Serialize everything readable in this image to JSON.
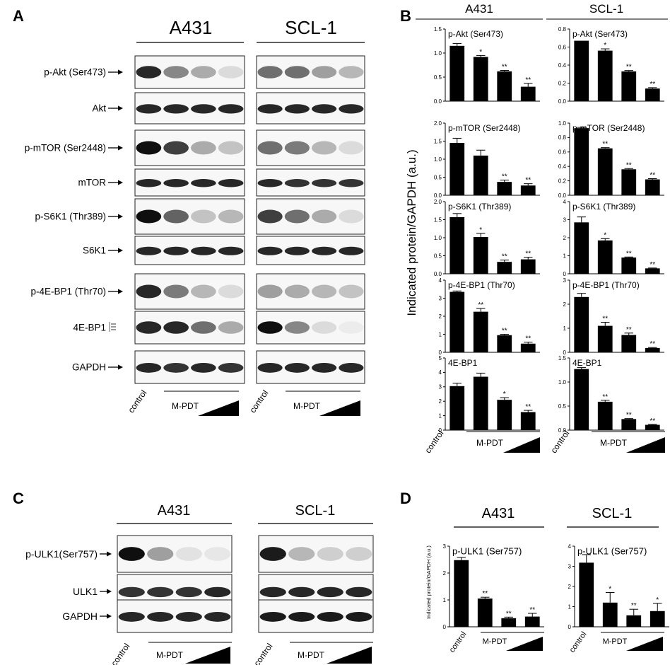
{
  "panel_letters": {
    "a": "A",
    "b": "B",
    "c": "C",
    "d": "D"
  },
  "cell_lines": {
    "a431": "A431",
    "scl1": "SCL-1"
  },
  "blot_labels": {
    "p_akt": "p-Akt (Ser473)",
    "akt": "Akt",
    "p_mtor": "p-mTOR (Ser2448)",
    "mtor": "mTOR",
    "p_s6k1": "p-S6K1 (Thr389)",
    "s6k1": "S6K1",
    "p_4ebp1": "p-4E-BP1 (Thr70)",
    "four_ebp1": "4E-BP1",
    "gapdh": "GAPDH",
    "p_ulk1": "p-ULK1(Ser757)",
    "ulk1": "ULK1"
  },
  "treatment_labels": {
    "control": "control",
    "mpdt": "M-PDT"
  },
  "y_axis_title_b": "Indicated protein/GAPDH (a.u.)",
  "y_axis_title_d": "Indicated protein/GAPDH (a.u.)",
  "band_intensity": {
    "a431": {
      "p_akt": [
        0.9,
        0.5,
        0.35,
        0.15
      ],
      "akt": [
        0.9,
        0.9,
        0.9,
        0.9
      ],
      "p_mtor": [
        1.0,
        0.8,
        0.35,
        0.25
      ],
      "mtor": [
        0.9,
        0.9,
        0.9,
        0.9
      ],
      "p_s6k1": [
        1.0,
        0.65,
        0.25,
        0.3
      ],
      "s6k1": [
        0.9,
        0.9,
        0.9,
        0.9
      ],
      "p_4ebp1": [
        0.9,
        0.55,
        0.3,
        0.15
      ],
      "four_ebp1": [
        0.9,
        0.9,
        0.6,
        0.35
      ],
      "gapdh": [
        0.9,
        0.85,
        0.9,
        0.85
      ],
      "p_ulk1": [
        1.0,
        0.4,
        0.12,
        0.1
      ],
      "ulk1": [
        0.85,
        0.85,
        0.85,
        0.9
      ],
      "gapdh_c": [
        0.9,
        0.9,
        0.9,
        0.9
      ]
    },
    "scl1": {
      "p_akt": [
        0.6,
        0.6,
        0.4,
        0.3
      ],
      "akt": [
        0.9,
        0.9,
        0.9,
        0.9
      ],
      "p_mtor": [
        0.6,
        0.55,
        0.3,
        0.15
      ],
      "mtor": [
        0.9,
        0.85,
        0.85,
        0.85
      ],
      "p_s6k1": [
        0.8,
        0.6,
        0.35,
        0.15
      ],
      "s6k1": [
        0.9,
        0.9,
        0.9,
        0.9
      ],
      "p_4ebp1": [
        0.4,
        0.35,
        0.3,
        0.25
      ],
      "four_ebp1": [
        1.0,
        0.5,
        0.15,
        0.08
      ],
      "gapdh": [
        0.9,
        0.9,
        0.9,
        0.9
      ],
      "p_ulk1": [
        0.95,
        0.3,
        0.2,
        0.2
      ],
      "ulk1": [
        0.9,
        0.9,
        0.9,
        0.9
      ],
      "gapdh_c": [
        0.95,
        0.95,
        0.95,
        0.95
      ]
    }
  },
  "chart_data": [
    {
      "type": "bar",
      "panel": "B",
      "cell_line": "A431",
      "title": "p-Akt (Ser473)",
      "categories": [
        "control",
        "M-PDT",
        "M-PDT",
        "M-PDT"
      ],
      "values": [
        1.15,
        0.92,
        0.62,
        0.3
      ],
      "errors": [
        0.05,
        0.03,
        0.02,
        0.07
      ],
      "significance": [
        "",
        "*",
        "**",
        "**"
      ],
      "ylim": [
        0,
        1.5
      ],
      "yticks": [
        0,
        0.5,
        1.0,
        1.5
      ],
      "ytick_labels": [
        "0.0",
        "0.5",
        "1.0",
        "1.5"
      ]
    },
    {
      "type": "bar",
      "panel": "B",
      "cell_line": "A431",
      "title": "p-mTOR (Ser2448)",
      "categories": [
        "control",
        "M-PDT",
        "M-PDT",
        "M-PDT"
      ],
      "values": [
        1.45,
        1.1,
        0.37,
        0.27
      ],
      "errors": [
        0.13,
        0.15,
        0.05,
        0.05
      ],
      "significance": [
        "",
        "",
        "**",
        "**"
      ],
      "ylim": [
        0,
        2.0
      ],
      "yticks": [
        0,
        0.5,
        1.0,
        1.5,
        2.0
      ],
      "ytick_labels": [
        "0.0",
        "0.5",
        "1.0",
        "1.5",
        "2.0"
      ]
    },
    {
      "type": "bar",
      "panel": "B",
      "cell_line": "A431",
      "title": "p-S6K1 (Thr389)",
      "categories": [
        "control",
        "M-PDT",
        "M-PDT",
        "M-PDT"
      ],
      "values": [
        1.57,
        1.02,
        0.33,
        0.4
      ],
      "errors": [
        0.1,
        0.1,
        0.05,
        0.06
      ],
      "significance": [
        "",
        "*",
        "**",
        "**"
      ],
      "ylim": [
        0,
        2.0
      ],
      "yticks": [
        0,
        0.5,
        1.0,
        1.5,
        2.0
      ],
      "ytick_labels": [
        "0.0",
        "0.5",
        "1.0",
        "1.5",
        "2.0"
      ]
    },
    {
      "type": "bar",
      "panel": "B",
      "cell_line": "A431",
      "title": "p-4E-BP1 (Thr70)",
      "categories": [
        "control",
        "M-PDT",
        "M-PDT",
        "M-PDT"
      ],
      "values": [
        3.35,
        2.25,
        0.95,
        0.48
      ],
      "errors": [
        0.05,
        0.18,
        0.05,
        0.08
      ],
      "significance": [
        "",
        "**",
        "**",
        "**"
      ],
      "ylim": [
        0,
        4
      ],
      "yticks": [
        0,
        1,
        2,
        3,
        4
      ],
      "ytick_labels": [
        "0",
        "1",
        "2",
        "3",
        "4"
      ]
    },
    {
      "type": "bar",
      "panel": "B",
      "cell_line": "A431",
      "title": "4E-BP1",
      "categories": [
        "control",
        "M-PDT",
        "M-PDT",
        "M-PDT"
      ],
      "values": [
        3.05,
        3.7,
        2.1,
        1.25
      ],
      "errors": [
        0.2,
        0.25,
        0.15,
        0.12
      ],
      "significance": [
        "",
        "",
        "*",
        "**"
      ],
      "ylim": [
        0,
        5
      ],
      "yticks": [
        0,
        1,
        2,
        3,
        4,
        5
      ],
      "ytick_labels": [
        "0",
        "1",
        "2",
        "3",
        "4",
        "5"
      ]
    },
    {
      "type": "bar",
      "panel": "B",
      "cell_line": "SCL-1",
      "title": "p-Akt (Ser473)",
      "categories": [
        "control",
        "M-PDT",
        "M-PDT",
        "M-PDT"
      ],
      "values": [
        0.67,
        0.56,
        0.33,
        0.14
      ],
      "errors": [
        0.0,
        0.02,
        0.01,
        0.01
      ],
      "significance": [
        "",
        "*",
        "**",
        "**"
      ],
      "ylim": [
        0,
        0.8
      ],
      "yticks": [
        0,
        0.2,
        0.4,
        0.6,
        0.8
      ],
      "ytick_labels": [
        "0.0",
        "0.2",
        "0.4",
        "0.6",
        "0.8"
      ]
    },
    {
      "type": "bar",
      "panel": "B",
      "cell_line": "SCL-1",
      "title": "p-mTOR (Ser2448)",
      "categories": [
        "control",
        "M-PDT",
        "M-PDT",
        "M-PDT"
      ],
      "values": [
        0.93,
        0.65,
        0.36,
        0.22
      ],
      "errors": [
        0.01,
        0.01,
        0.01,
        0.01
      ],
      "significance": [
        "",
        "**",
        "**",
        "**"
      ],
      "ylim": [
        0,
        1.0
      ],
      "yticks": [
        0,
        0.2,
        0.4,
        0.6,
        0.8,
        1.0
      ],
      "ytick_labels": [
        "0.0",
        "0.2",
        "0.4",
        "0.6",
        "0.8",
        "1.0"
      ]
    },
    {
      "type": "bar",
      "panel": "B",
      "cell_line": "SCL-1",
      "title": "p-S6K1 (Thr389)",
      "categories": [
        "control",
        "M-PDT",
        "M-PDT",
        "M-PDT"
      ],
      "values": [
        2.85,
        1.85,
        0.9,
        0.3
      ],
      "errors": [
        0.3,
        0.1,
        0.03,
        0.02
      ],
      "significance": [
        "",
        "*",
        "**",
        "**"
      ],
      "ylim": [
        0,
        4
      ],
      "yticks": [
        0,
        1,
        2,
        3,
        4
      ],
      "ytick_labels": [
        "0",
        "1",
        "2",
        "3",
        "4"
      ]
    },
    {
      "type": "bar",
      "panel": "B",
      "cell_line": "SCL-1",
      "title": "p-4E-BP1 (Thr70)",
      "categories": [
        "control",
        "M-PDT",
        "M-PDT",
        "M-PDT"
      ],
      "values": [
        2.3,
        1.1,
        0.72,
        0.18
      ],
      "errors": [
        0.15,
        0.15,
        0.08,
        0.02
      ],
      "significance": [
        "",
        "**",
        "**",
        "**"
      ],
      "ylim": [
        0,
        3
      ],
      "yticks": [
        0,
        1,
        2,
        3
      ],
      "ytick_labels": [
        "0",
        "1",
        "2",
        "3"
      ]
    },
    {
      "type": "bar",
      "panel": "B",
      "cell_line": "SCL-1",
      "title": "4E-BP1",
      "categories": [
        "control",
        "M-PDT",
        "M-PDT",
        "M-PDT"
      ],
      "values": [
        1.27,
        0.59,
        0.23,
        0.11
      ],
      "errors": [
        0.03,
        0.03,
        0.01,
        0.01
      ],
      "significance": [
        "",
        "**",
        "**",
        "**"
      ],
      "ylim": [
        0,
        1.5
      ],
      "yticks": [
        0,
        0.5,
        1.0,
        1.5
      ],
      "ytick_labels": [
        "0.0",
        "0.5",
        "1.0",
        "1.5"
      ]
    },
    {
      "type": "bar",
      "panel": "D",
      "cell_line": "A431",
      "title": "p-ULK1 (Ser757)",
      "categories": [
        "control",
        "M-PDT",
        "M-PDT",
        "M-PDT"
      ],
      "values": [
        2.48,
        1.05,
        0.32,
        0.38
      ],
      "errors": [
        0.1,
        0.05,
        0.04,
        0.12
      ],
      "significance": [
        "",
        "**",
        "**",
        "**"
      ],
      "ylim": [
        0,
        3
      ],
      "yticks": [
        0,
        1,
        2,
        3
      ],
      "ytick_labels": [
        "0",
        "1",
        "2",
        "3"
      ]
    },
    {
      "type": "bar",
      "panel": "D",
      "cell_line": "SCL-1",
      "title": "p-ULK1 (Ser757)",
      "categories": [
        "control",
        "M-PDT",
        "M-PDT",
        "M-PDT"
      ],
      "values": [
        3.18,
        1.2,
        0.57,
        0.78
      ],
      "errors": [
        0.4,
        0.5,
        0.3,
        0.38
      ],
      "significance": [
        "",
        "*",
        "**",
        "*"
      ],
      "ylim": [
        0,
        4
      ],
      "yticks": [
        0,
        1,
        2,
        3,
        4
      ],
      "ytick_labels": [
        "0",
        "1",
        "2",
        "3",
        "4"
      ]
    }
  ]
}
